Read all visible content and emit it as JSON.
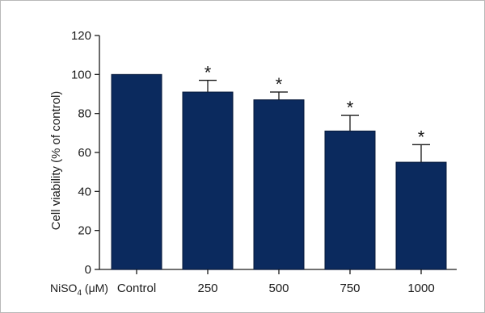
{
  "chart_data": {
    "type": "bar",
    "xlabel_prefix": "NiSO",
    "xlabel_subscript": "4",
    "xlabel_suffix": " (μM)",
    "ylabel": "Cell viability (% of control)",
    "categories": [
      "Control",
      "250",
      "500",
      "750",
      "1000"
    ],
    "values": [
      100,
      91,
      87,
      71,
      55
    ],
    "errors": [
      0,
      6,
      4,
      8,
      9
    ],
    "annotations": [
      "",
      "*",
      "*",
      "*",
      "*"
    ],
    "ylim": [
      0,
      120
    ],
    "yticks": [
      0,
      20,
      40,
      60,
      80,
      100,
      120
    ],
    "grid": false,
    "legend": "none"
  },
  "colors": {
    "bar": "#0b2a5e",
    "axis": "#1a1a1a"
  }
}
